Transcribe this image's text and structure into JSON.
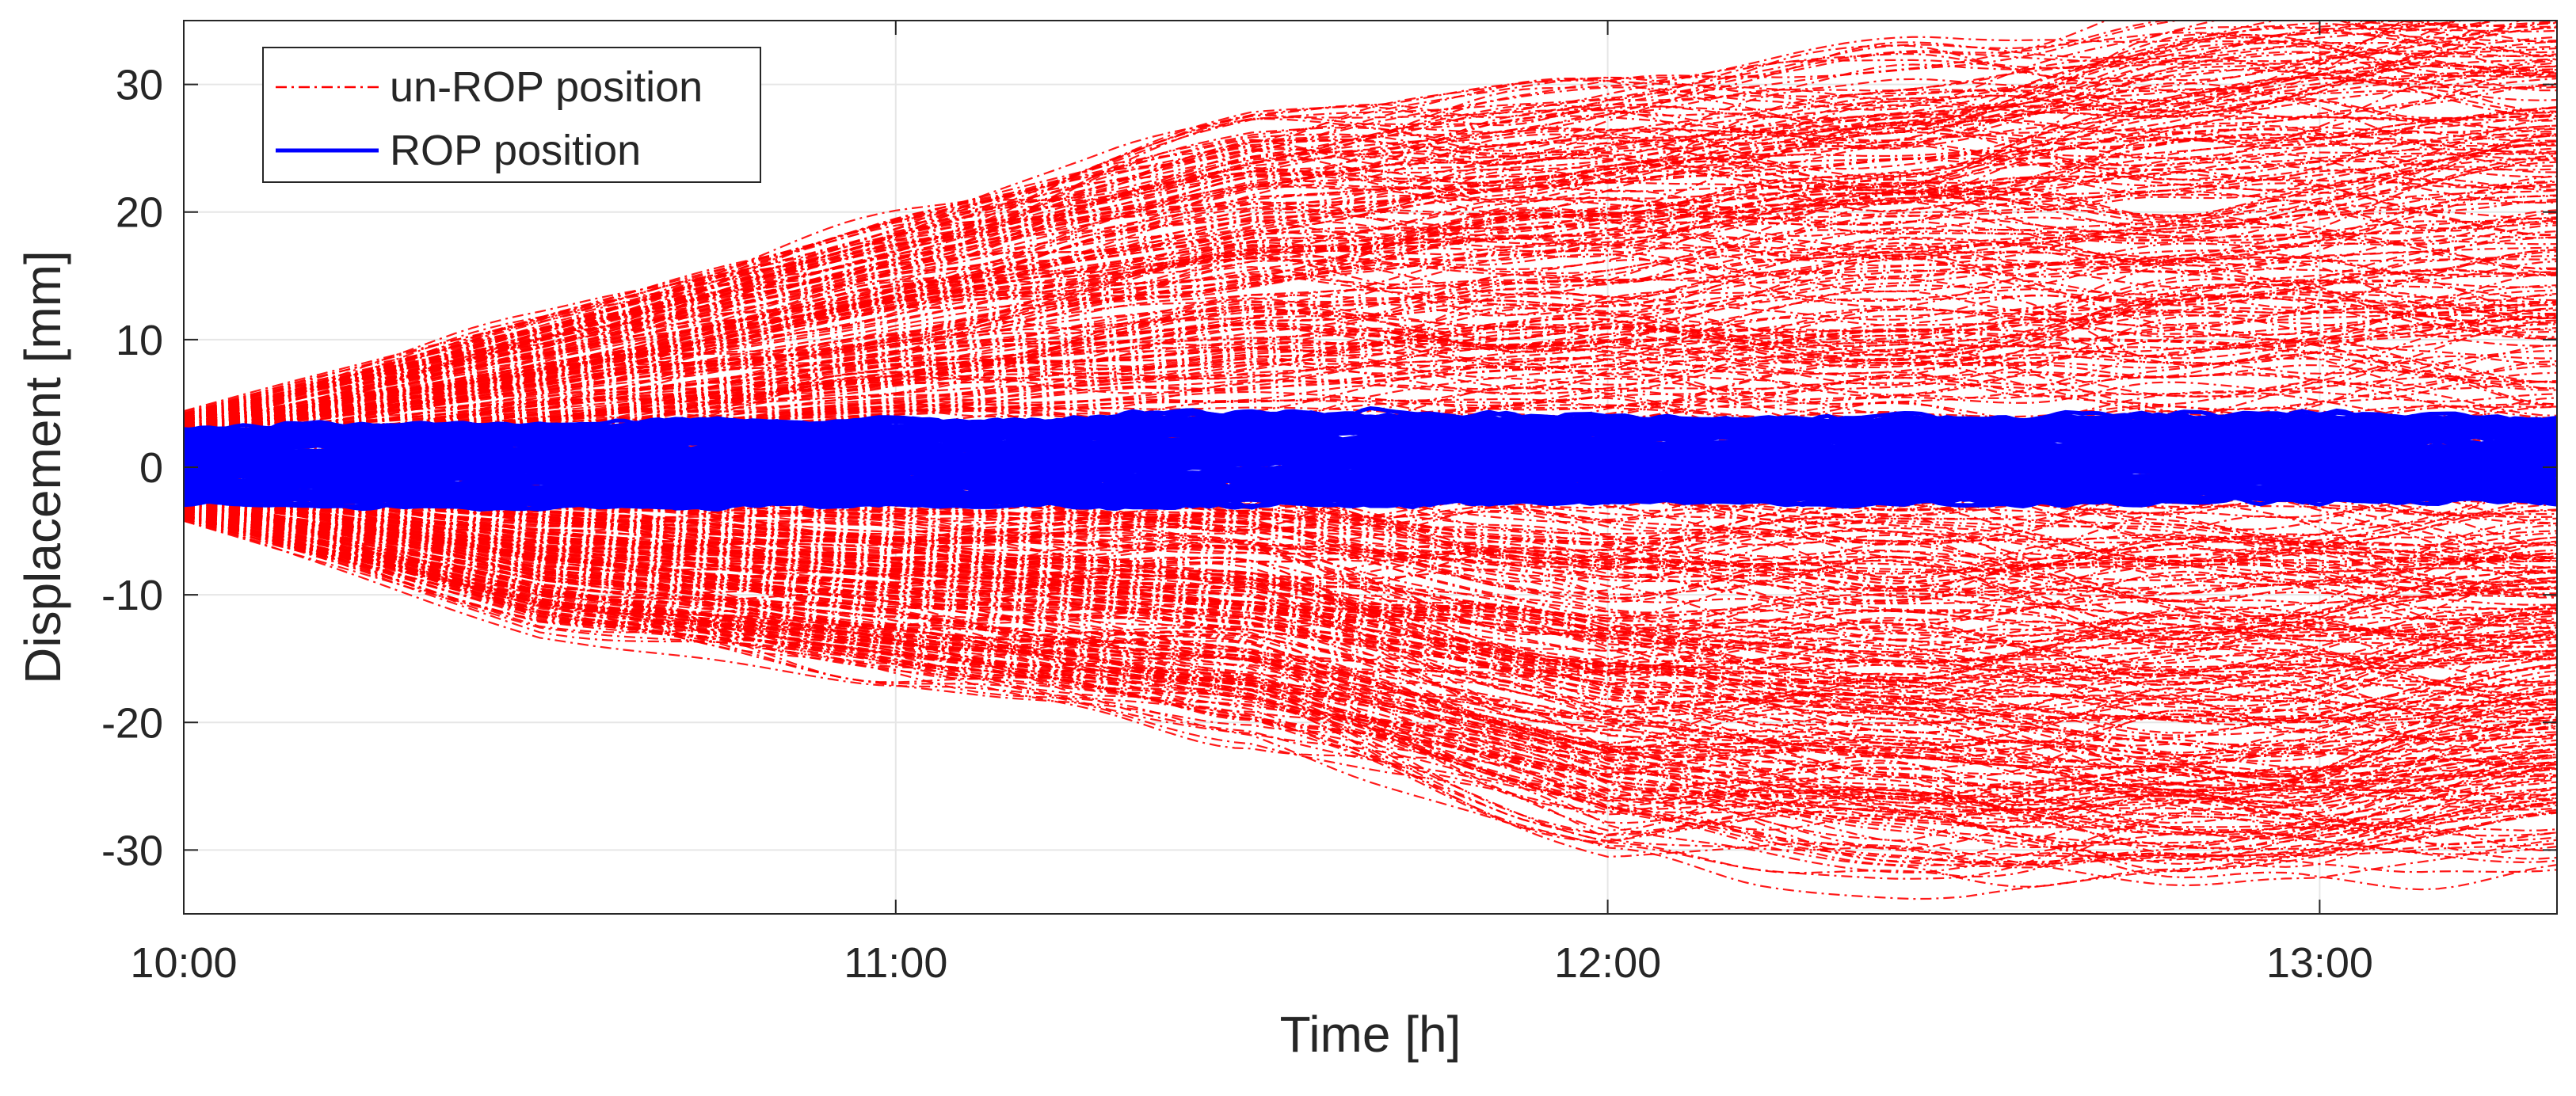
{
  "chart_data": {
    "type": "line",
    "xlabel": "Time [h]",
    "ylabel": "Displacement [mm]",
    "xlim": [
      "10:00",
      "13:20"
    ],
    "ylim": [
      -35,
      35
    ],
    "x_ticks": [
      "10:00",
      "11:00",
      "12:00",
      "13:00"
    ],
    "y_ticks": [
      30,
      20,
      10,
      0,
      -10,
      -20,
      -30
    ],
    "grid": true,
    "legend": {
      "placement": "top-left",
      "entries": [
        {
          "label": "un-ROP position",
          "color": "#ff0000",
          "line_style": "dash-dot"
        },
        {
          "label": "ROP position",
          "color": "#0000ff",
          "line_style": "solid"
        }
      ]
    },
    "series": [
      {
        "name": "un-ROP position",
        "color": "#ff0000",
        "line_style": "dash-dot",
        "envelope": {
          "x": [
            "10:00",
            "10:30",
            "11:00",
            "11:30",
            "12:00",
            "12:30",
            "13:00",
            "13:20"
          ],
          "upper": [
            4,
            11,
            19,
            26,
            29,
            31,
            34,
            35
          ],
          "lower": [
            -4,
            -12,
            -16,
            -20,
            -29,
            -31,
            -31,
            -29
          ]
        }
      },
      {
        "name": "ROP position",
        "color": "#0000ff",
        "line_style": "solid",
        "envelope": {
          "x": [
            "10:00",
            "10:30",
            "11:00",
            "11:30",
            "12:00",
            "12:30",
            "13:00",
            "13:20"
          ],
          "upper": [
            3.5,
            4,
            4.2,
            4.8,
            4.5,
            4.3,
            4.8,
            4.4
          ],
          "lower": [
            -3.2,
            -3.5,
            -3.4,
            -3.4,
            -3.2,
            -3.3,
            -3.1,
            -3.2
          ]
        }
      }
    ]
  }
}
